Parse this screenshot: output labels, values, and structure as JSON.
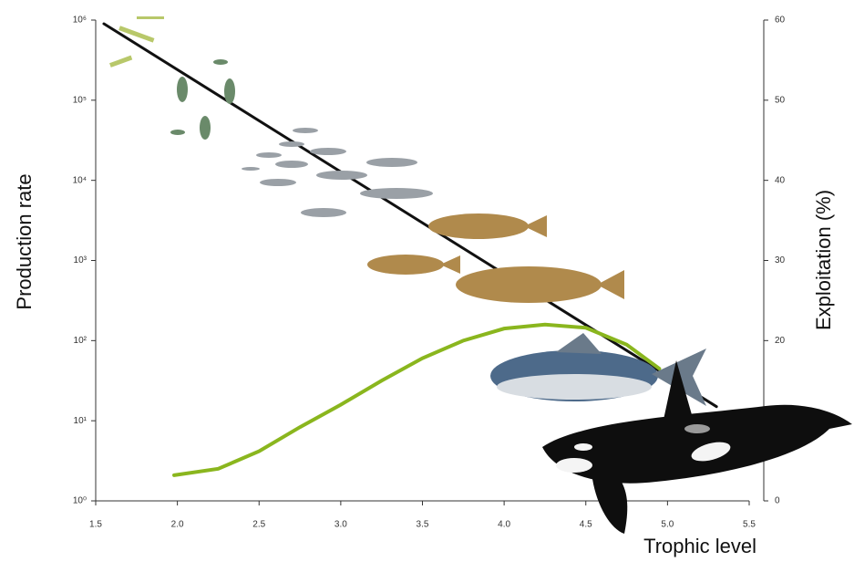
{
  "chart_data": {
    "type": "line",
    "xlabel": "Trophic level",
    "ylabel": "Production rate",
    "y2label": "Exploitation (%)",
    "xlim": [
      1.5,
      5.5
    ],
    "xticks": [
      1.5,
      2.0,
      2.5,
      3.0,
      3.5,
      4.0,
      4.5,
      5.0,
      5.5
    ],
    "ylog": true,
    "ylim": [
      1,
      1000000
    ],
    "yticks": [
      {
        "value": 1,
        "label": "10⁰"
      },
      {
        "value": 10,
        "label": "10¹"
      },
      {
        "value": 100,
        "label": "10²"
      },
      {
        "value": 1000,
        "label": "10³"
      },
      {
        "value": 10000,
        "label": "10⁴"
      },
      {
        "value": 100000,
        "label": "10⁵"
      },
      {
        "value": 1000000,
        "label": "10⁶"
      }
    ],
    "y2lim": [
      0,
      60
    ],
    "y2ticks": [
      0,
      10,
      20,
      30,
      40,
      50,
      60
    ],
    "series": [
      {
        "color": "#111111",
        "x": [
          1.55,
          5.3
        ],
        "values": [
          900000,
          15
        ]
      },
      {
        "color": "#8ab61e",
        "axis": "y2",
        "x": [
          1.98,
          2.25,
          2.5,
          2.75,
          3.0,
          3.25,
          3.5,
          3.75,
          4.0,
          4.25,
          4.5,
          4.75,
          4.95
        ],
        "values": [
          3.2,
          4.0,
          6.2,
          9.2,
          12.0,
          15.0,
          17.8,
          20.0,
          21.5,
          22.0,
          21.6,
          19.5,
          16.5
        ]
      }
    ]
  }
}
